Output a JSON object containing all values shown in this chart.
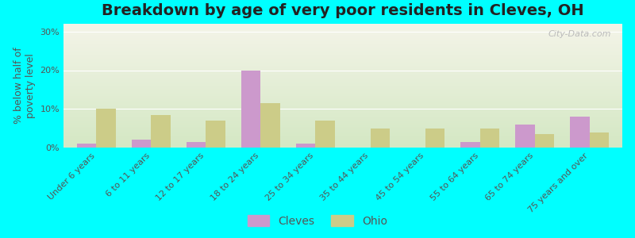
{
  "title": "Breakdown by age of very poor residents in Cleves, OH",
  "ylabel": "% below half of\npoverty level",
  "categories": [
    "Under 6 years",
    "6 to 11 years",
    "12 to 17 years",
    "18 to 24 years",
    "25 to 34 years",
    "35 to 44 years",
    "45 to 54 years",
    "55 to 64 years",
    "65 to 74 years",
    "75 years and over"
  ],
  "cleves_values": [
    1.0,
    2.0,
    1.5,
    20.0,
    1.0,
    0.0,
    0.0,
    1.5,
    6.0,
    8.0
  ],
  "ohio_values": [
    10.0,
    8.5,
    7.0,
    11.5,
    7.0,
    5.0,
    5.0,
    5.0,
    3.5,
    4.0
  ],
  "cleves_color": "#cc99cc",
  "ohio_color": "#cccc88",
  "background_outer": "#00ffff",
  "background_plot_top": "#f4f4e8",
  "background_plot_bottom": "#d4e8c4",
  "ylim": [
    0,
    32
  ],
  "yticks": [
    0,
    10,
    20,
    30
  ],
  "ytick_labels": [
    "0%",
    "10%",
    "20%",
    "30%"
  ],
  "bar_width": 0.35,
  "title_fontsize": 14,
  "axis_label_fontsize": 9,
  "tick_fontsize": 8,
  "legend_fontsize": 10,
  "watermark": "City-Data.com"
}
